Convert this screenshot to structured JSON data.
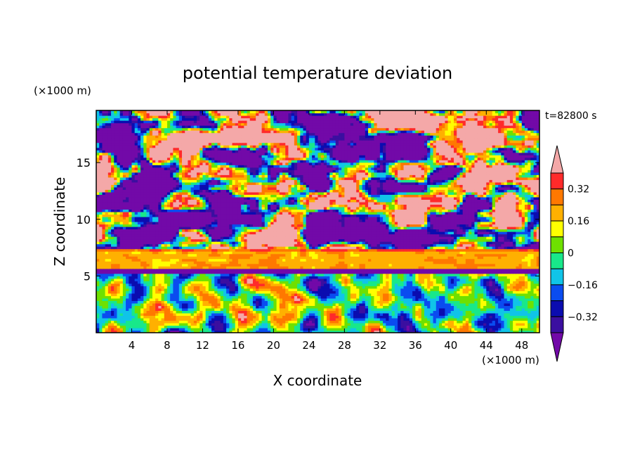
{
  "chart_data": {
    "type": "heatmap",
    "title": "potential temperature deviation",
    "xlabel": "X coordinate",
    "ylabel": "Z coordinate",
    "x_unit": "(×1000 m)",
    "y_unit": "(×1000 m)",
    "time_label": "t=82800 s",
    "xlim": [
      0,
      50
    ],
    "ylim": [
      0,
      19.6
    ],
    "x_ticks": [
      4,
      8,
      12,
      16,
      20,
      24,
      28,
      32,
      36,
      40,
      44,
      48
    ],
    "y_ticks": [
      5,
      10,
      15
    ],
    "colorbar": {
      "levels": [
        -0.4,
        -0.32,
        -0.24,
        -0.16,
        -0.08,
        0,
        0.08,
        0.16,
        0.24,
        0.32,
        0.4
      ],
      "labeled_levels": [
        0.32,
        0.16,
        0,
        -0.16,
        -0.32
      ],
      "labels": [
        "0.32",
        "0.16",
        "0",
        "−0.16",
        "−0.32"
      ],
      "colors": [
        "#7209a8",
        "#3b0fa0",
        "#0b0cb0",
        "#0a4cf0",
        "#10c4e8",
        "#18e88a",
        "#6ee000",
        "#ffff00",
        "#ffb000",
        "#ff7800",
        "#ff2a2a",
        "#f4a8a8"
      ],
      "extend": "both"
    },
    "bands": [
      {
        "z_range": [
          0,
          5.3
        ],
        "pattern": "convective cells, mixed values"
      },
      {
        "z_range": [
          5.5,
          7.5
        ],
        "pattern": "warm layer ~0.16 to 0.32"
      },
      {
        "z_range": [
          7.5,
          19.6
        ],
        "pattern": "patchy clouds alternating ≤ -0.4 and ≥ 0.4"
      }
    ]
  }
}
